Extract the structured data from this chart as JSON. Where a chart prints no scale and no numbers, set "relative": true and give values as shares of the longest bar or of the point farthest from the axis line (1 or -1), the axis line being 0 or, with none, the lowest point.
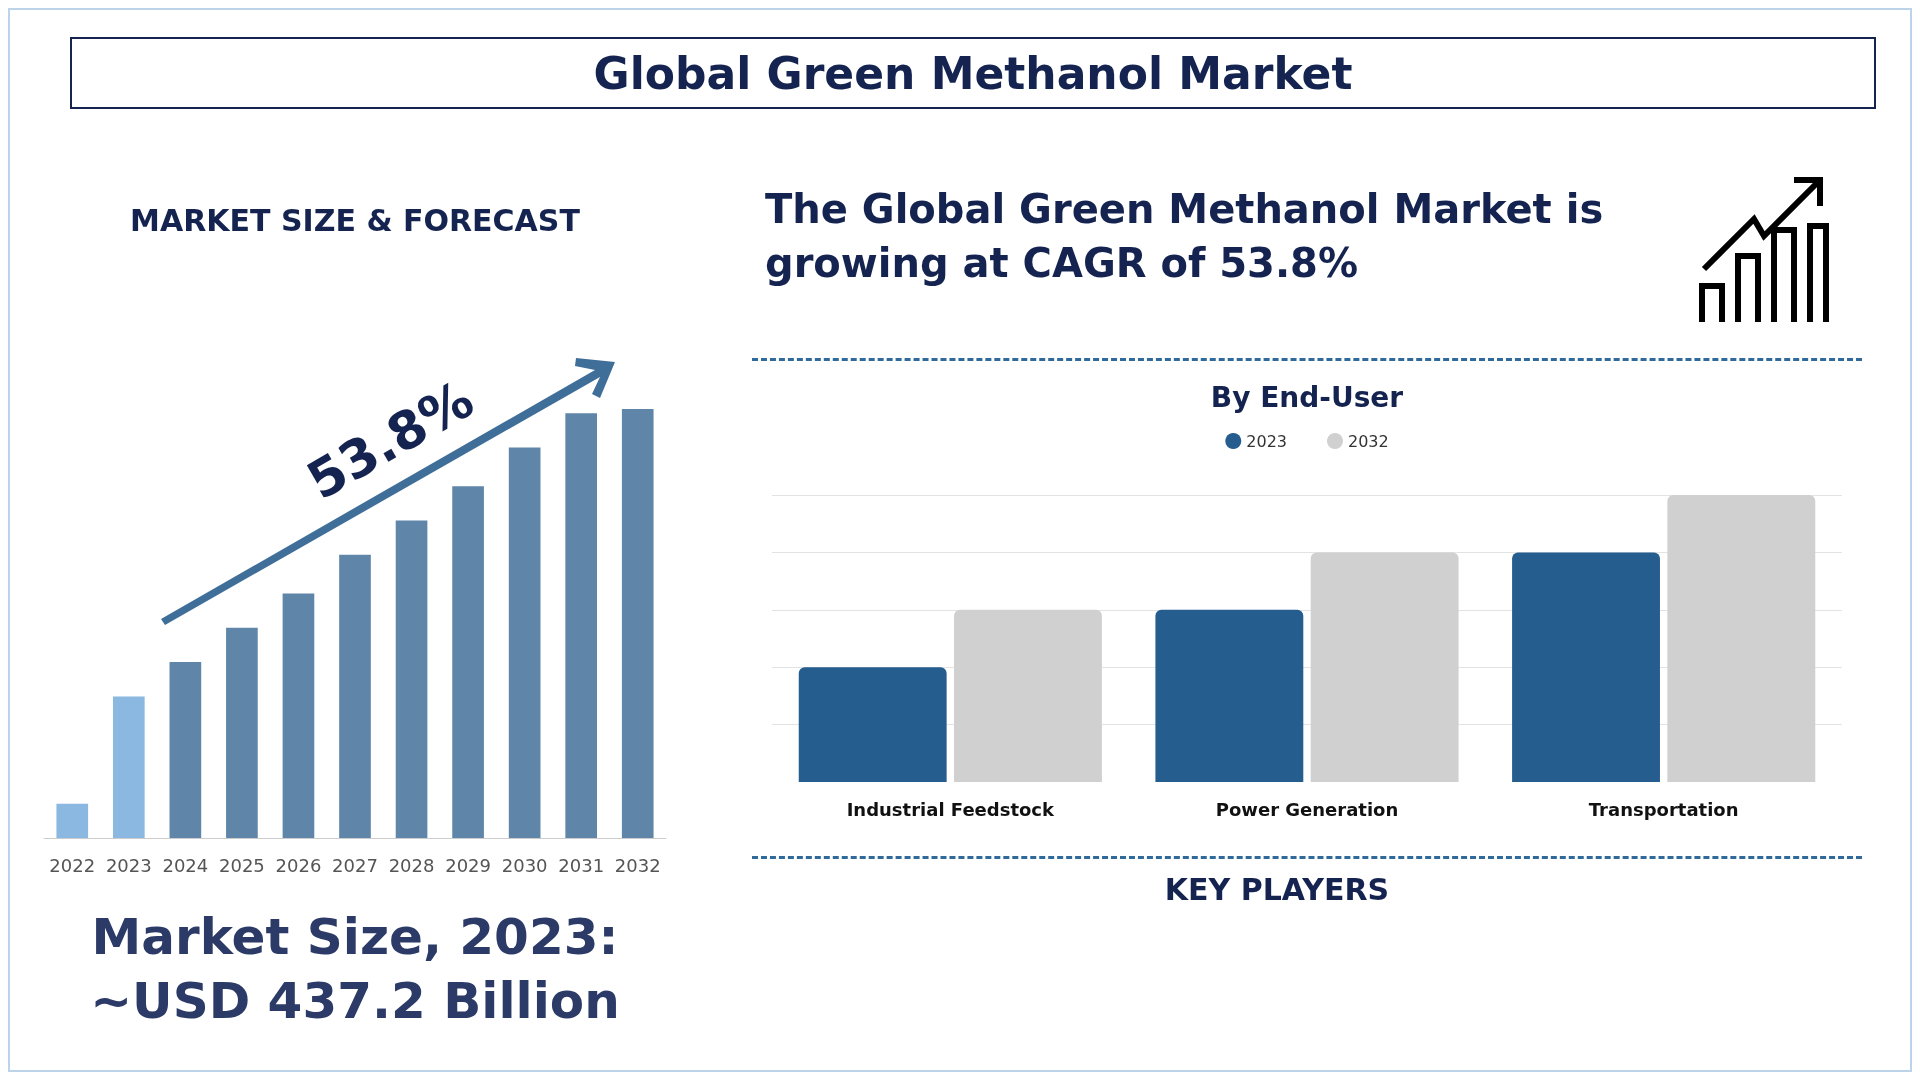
{
  "chart_data": [
    {
      "type": "other",
      "title": "Global Green Methanol Market",
      "annotations": [
        "The Global Green Methanol Market is growing at CAGR of 53.8%",
        "KEY PLAYERS"
      ]
    },
    {
      "type": "bar",
      "title": "MARKET SIZE & FORECAST",
      "relative": true,
      "categories": [
        "2022",
        "2023",
        "2024",
        "2025",
        "2026",
        "2027",
        "2028",
        "2029",
        "2030",
        "2031",
        "2032"
      ],
      "values": [
        0.08,
        0.33,
        0.41,
        0.49,
        0.57,
        0.66,
        0.74,
        0.82,
        0.91,
        0.99,
        1
      ],
      "colors": [
        "#8ab8e0",
        "#8ab8e0",
        "#5f86a8",
        "#5f86a8",
        "#5f86a8",
        "#5f86a8",
        "#5f86a8",
        "#5f86a8",
        "#5f86a8",
        "#5f86a8",
        "#5f86a8"
      ],
      "grid": false,
      "annotations": [
        "53.8%",
        "Market Size, 2023: ~USD 437.2 Billion"
      ]
    },
    {
      "type": "bar",
      "title": "By End-User",
      "relative": true,
      "categories": [
        "Industrial Feedstock",
        "Power Generation",
        "Transportation"
      ],
      "series": [
        {
          "name": "2023",
          "color": "#265d8f",
          "values": [
            0.4,
            0.6,
            0.8
          ]
        },
        {
          "name": "2032",
          "color": "#d0d0d0",
          "values": [
            0.6,
            0.8,
            1
          ]
        }
      ],
      "grid": "y",
      "legend": "top"
    }
  ]
}
